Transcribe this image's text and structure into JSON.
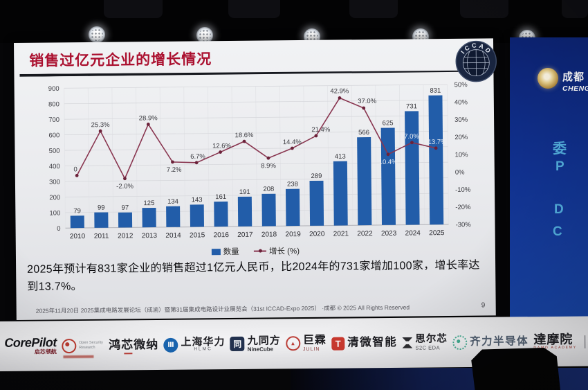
{
  "slide": {
    "title": "销售过亿元企业的增长情况",
    "logo_text": "ICCAD",
    "body_text": "2025年预计有831家企业的销售超过1亿元人民币，比2024年的731家增加100家，增长率达到13.7%。",
    "footer": "2025年11月20日 2025集成电路发展论坛（成渝）暨第31届集成电路设计业展览会（31st ICCAD-Expo 2025） ·成都 © 2025 All Rights Reserved",
    "page_number": "9"
  },
  "chart_data": {
    "type": "bar",
    "title": "销售过亿元企业的增长情况",
    "categories": [
      "2010",
      "2011",
      "2012",
      "2013",
      "2014",
      "2015",
      "2016",
      "2017",
      "2018",
      "2019",
      "2020",
      "2021",
      "2022",
      "2023",
      "2024",
      "2025"
    ],
    "series": [
      {
        "name": "数量",
        "type": "bar",
        "values": [
          79,
          99,
          97,
          125,
          134,
          143,
          161,
          191,
          208,
          238,
          289,
          413,
          566,
          625,
          731,
          831
        ]
      },
      {
        "name": "增长 (%)",
        "type": "line",
        "values": [
          0,
          25.3,
          -2.0,
          28.9,
          7.2,
          6.7,
          12.6,
          18.6,
          8.9,
          14.4,
          21.4,
          42.9,
          37.0,
          10.4,
          17.0,
          13.7
        ],
        "point_labels": [
          "0",
          "25.3%",
          "-2.0%",
          "28.9%",
          "7.2%",
          "6.7%",
          "12.6%",
          "18.6%",
          "8.9%",
          "14.4%",
          "21.4%",
          "42.9%",
          "37.0%",
          "10.4%",
          "17.0%",
          "13.7%"
        ]
      }
    ],
    "left_axis": {
      "min": 0,
      "max": 900,
      "step": 100
    },
    "right_axis": {
      "min": -30,
      "max": 50,
      "step": 10,
      "suffix": "%"
    },
    "legend": [
      "数量",
      "增长 (%)"
    ],
    "legend_position": "bottom",
    "grid": true,
    "colors": {
      "bar": "#1f5dad",
      "line": "#8c3450",
      "marker": "#6d1f39",
      "label": "#3a3a40",
      "label_on_bar": "#edf0f5"
    },
    "label_layout": [
      [
        -2,
        -6,
        0
      ],
      [
        0,
        -6,
        0
      ],
      [
        0,
        14,
        0
      ],
      [
        0,
        -6,
        0
      ],
      [
        2,
        14,
        0
      ],
      [
        2,
        -6,
        0
      ],
      [
        2,
        -6,
        0
      ],
      [
        0,
        -6,
        0
      ],
      [
        0,
        14,
        0
      ],
      [
        0,
        -6,
        0
      ],
      [
        7,
        -6,
        0
      ],
      [
        0,
        -7,
        0
      ],
      [
        5,
        -7,
        0
      ],
      [
        0,
        14,
        1
      ],
      [
        -3,
        -6,
        1
      ],
      [
        2,
        -6,
        1
      ]
    ]
  },
  "side_panel": {
    "brand_cn": "成都",
    "brand_en": "CHENGDU",
    "glyphs": [
      "委",
      "P",
      "D",
      "C"
    ]
  },
  "banner": {
    "separator": "|",
    "sponsors": [
      {
        "id": "corepilot",
        "label": "CorePilot",
        "sub": "启芯领航"
      },
      {
        "id": "osr",
        "label": "Open Security Research",
        "sub": ""
      },
      {
        "id": "hongxin",
        "label": "鸿芯微纳",
        "sub": ""
      },
      {
        "id": "hlmc",
        "label": "上海华力",
        "sub": "HLMC"
      },
      {
        "id": "ninecube",
        "label": "九同方",
        "sub": "NineCube"
      },
      {
        "id": "julin",
        "label": "巨霖",
        "sub": "JULIN"
      },
      {
        "id": "qingwei",
        "label": "清微智能",
        "sub": ""
      },
      {
        "id": "s2c",
        "label": "思尔芯",
        "sub": "S2C EDA"
      },
      {
        "id": "qili",
        "label": "齐力半导体",
        "sub": ""
      },
      {
        "id": "damo",
        "label": "達摩院",
        "sub": "DAMO ACADEMY"
      }
    ]
  }
}
